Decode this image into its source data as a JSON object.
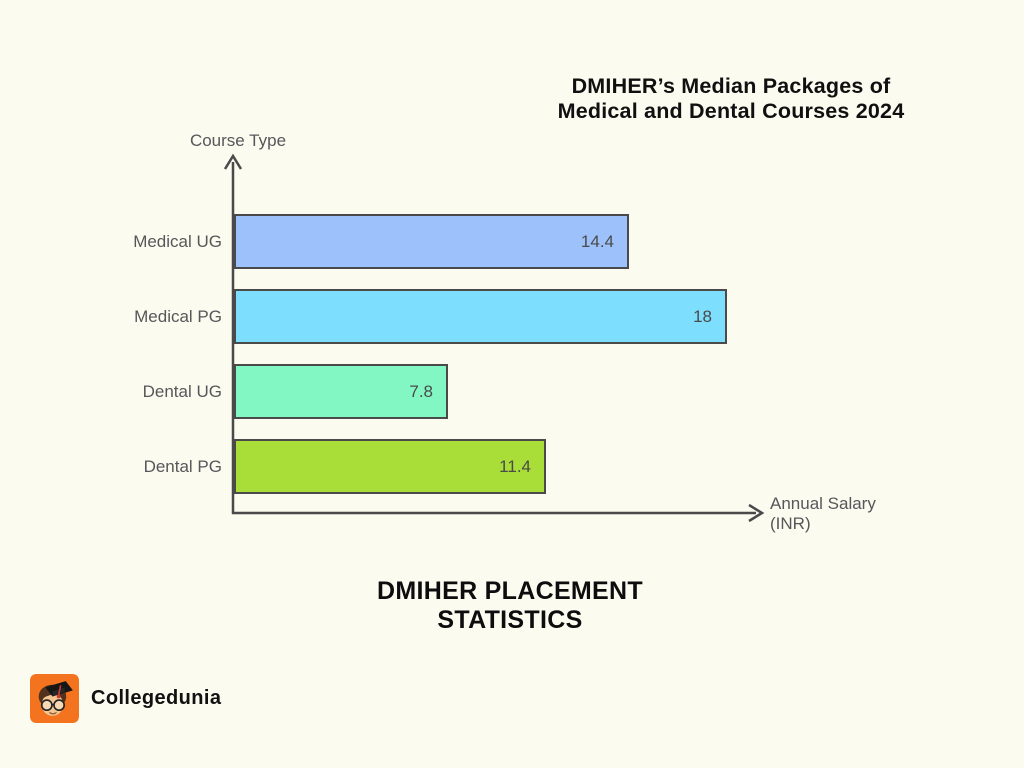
{
  "page": {
    "background_color": "#FBFBF0"
  },
  "header": {
    "title_line1": "DMIHER’s Median Packages of",
    "title_line2": "Medical and Dental Courses 2024"
  },
  "chart_data": {
    "type": "bar",
    "orientation": "horizontal",
    "title": "DMIHER’s Median Packages of Medical and Dental Courses 2024",
    "categories": [
      "Medical UG",
      "Medical PG",
      "Dental UG",
      "Dental PG"
    ],
    "values": [
      14.4,
      18,
      7.8,
      11.4
    ],
    "value_labels": [
      "14.4",
      "18",
      "7.8",
      "11.4"
    ],
    "bar_colors": [
      "#9DC1FB",
      "#7EDEFD",
      "#82F7C3",
      "#A9DD37"
    ],
    "bar_border_color": "#4A4A4A",
    "xlabel": "Annual Salary (INR)",
    "ylabel": "Course Type",
    "xlim": [
      0,
      19
    ],
    "grid": false,
    "legend": "none"
  },
  "footer": {
    "title_line1": "DMIHER PLACEMENT",
    "title_line2": "STATISTICS"
  },
  "branding": {
    "logo_text": "Collegedunia",
    "logo_color": "#F4731F",
    "logo_icon": "collegedunia-mascot-icon"
  }
}
